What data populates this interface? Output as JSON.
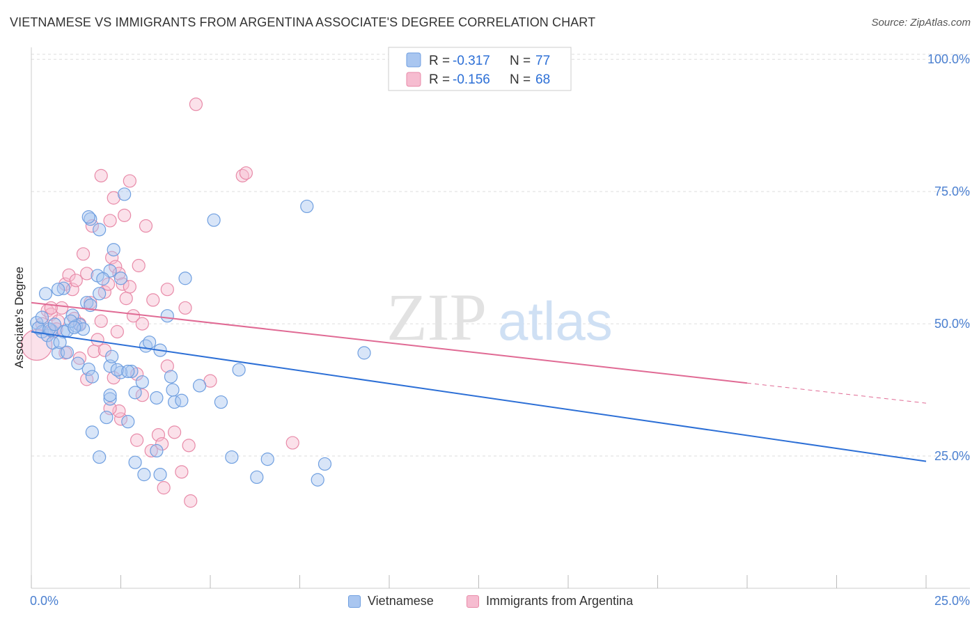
{
  "title": "VIETNAMESE VS IMMIGRANTS FROM ARGENTINA ASSOCIATE'S DEGREE CORRELATION CHART",
  "source": "Source: ZipAtlas.com",
  "watermark": {
    "zip": "ZIP",
    "atlas": "atlas"
  },
  "colors": {
    "blue_fill": "#a9c6f0",
    "blue_stroke": "#6f9fe0",
    "blue_line": "#2c6fd6",
    "pink_fill": "#f6bcd0",
    "pink_stroke": "#e88aa8",
    "pink_line": "#e06a94",
    "tick": "#4a7fd0",
    "grid": "#dddddd"
  },
  "legend": {
    "blue": {
      "r_label": "R = ",
      "r_value": "-0.317",
      "n_label": "N = ",
      "n_value": "77"
    },
    "pink": {
      "r_label": "R = ",
      "r_value": "-0.156",
      "n_label": "N = ",
      "n_value": "68"
    }
  },
  "bottom_legend": {
    "blue": "Vietnamese",
    "pink": "Immigrants from Argentina"
  },
  "chart_data": {
    "type": "scatter",
    "title": "VIETNAMESE VS IMMIGRANTS FROM ARGENTINA ASSOCIATE'S DEGREE CORRELATION CHART",
    "xlabel": "",
    "ylabel": "Associate's Degree",
    "xlim": [
      0,
      25
    ],
    "ylim": [
      0,
      102
    ],
    "x_tick_labels": [
      "0.0%",
      "25.0%"
    ],
    "y_ticks": [
      25,
      50,
      75,
      100
    ],
    "y_tick_labels": [
      "25.0%",
      "50.0%",
      "75.0%",
      "100.0%"
    ],
    "grid": "horizontal dashed",
    "legend_position": "top-center",
    "series": [
      {
        "name": "Vietnamese",
        "color": "#a9c6f0",
        "R": -0.317,
        "N": 77,
        "trend": {
          "x": [
            0,
            25
          ],
          "y": [
            48.5,
            24.0
          ],
          "dashed_from": null
        },
        "points": [
          [
            0.15,
            50.2
          ],
          [
            0.3,
            48.5
          ],
          [
            0.45,
            47.8
          ],
          [
            0.55,
            48.8
          ],
          [
            0.6,
            46.4
          ],
          [
            0.75,
            44.5
          ],
          [
            0.9,
            48.5
          ],
          [
            1.0,
            48.7
          ],
          [
            1.15,
            51.6
          ],
          [
            1.25,
            49.6
          ],
          [
            1.35,
            49.8
          ],
          [
            1.45,
            49.0
          ],
          [
            1.55,
            54.0
          ],
          [
            1.65,
            53.5
          ],
          [
            0.4,
            55.7
          ],
          [
            0.9,
            56.7
          ],
          [
            0.75,
            56.5
          ],
          [
            1.1,
            50.5
          ],
          [
            0.2,
            49.2
          ],
          [
            0.3,
            51.2
          ],
          [
            1.6,
            41.4
          ],
          [
            1.7,
            40.0
          ],
          [
            2.2,
            42.0
          ],
          [
            2.25,
            43.8
          ],
          [
            1.7,
            29.5
          ],
          [
            2.1,
            32.3
          ],
          [
            2.2,
            35.8
          ],
          [
            2.2,
            36.5
          ],
          [
            1.9,
            24.8
          ],
          [
            2.9,
            23.8
          ],
          [
            2.8,
            41.0
          ],
          [
            2.7,
            31.5
          ],
          [
            2.9,
            37.0
          ],
          [
            3.15,
            21.5
          ],
          [
            3.1,
            39.0
          ],
          [
            3.5,
            36.0
          ],
          [
            3.5,
            26.0
          ],
          [
            3.2,
            45.8
          ],
          [
            3.3,
            46.5
          ],
          [
            3.6,
            45.0
          ],
          [
            3.8,
            51.5
          ],
          [
            3.9,
            40.0
          ],
          [
            3.95,
            37.5
          ],
          [
            4.0,
            35.2
          ],
          [
            4.2,
            35.5
          ],
          [
            3.6,
            21.5
          ],
          [
            4.3,
            58.6
          ],
          [
            1.65,
            69.8
          ],
          [
            1.9,
            67.8
          ],
          [
            1.6,
            70.2
          ],
          [
            2.3,
            64.0
          ],
          [
            1.85,
            59.1
          ],
          [
            2.2,
            60.0
          ],
          [
            2.5,
            58.6
          ],
          [
            1.9,
            55.7
          ],
          [
            2.6,
            74.5
          ],
          [
            2.0,
            58.5
          ],
          [
            1.3,
            42.5
          ],
          [
            2.5,
            40.8
          ],
          [
            2.4,
            41.3
          ],
          [
            5.3,
            35.2
          ],
          [
            5.6,
            24.8
          ],
          [
            6.3,
            21.0
          ],
          [
            6.6,
            24.4
          ],
          [
            5.1,
            69.6
          ],
          [
            7.7,
            72.2
          ],
          [
            8.2,
            23.5
          ],
          [
            9.3,
            44.5
          ],
          [
            4.7,
            38.3
          ],
          [
            8.0,
            20.5
          ],
          [
            5.8,
            41.3
          ],
          [
            1.2,
            49.3
          ],
          [
            2.7,
            41.0
          ],
          [
            0.8,
            46.5
          ],
          [
            1.0,
            44.6
          ],
          [
            0.5,
            49.0
          ],
          [
            0.65,
            49.9
          ]
        ]
      },
      {
        "name": "Immigrants from Argentina",
        "color": "#f6bcd0",
        "R": -0.156,
        "N": 68,
        "trend": {
          "x": [
            0,
            25
          ],
          "y": [
            54.0,
            35.0
          ],
          "dashed_from": 20.0
        },
        "points": [
          [
            0.15,
            46.0
          ],
          [
            0.3,
            50.0
          ],
          [
            0.45,
            52.5
          ],
          [
            0.55,
            51.8
          ],
          [
            0.6,
            48.5
          ],
          [
            0.75,
            50.5
          ],
          [
            0.85,
            53.0
          ],
          [
            0.95,
            57.5
          ],
          [
            1.05,
            59.2
          ],
          [
            1.15,
            56.5
          ],
          [
            1.25,
            58.2
          ],
          [
            1.35,
            50.0
          ],
          [
            1.45,
            63.2
          ],
          [
            1.55,
            59.5
          ],
          [
            1.65,
            54.0
          ],
          [
            1.75,
            44.8
          ],
          [
            1.85,
            47.0
          ],
          [
            1.95,
            50.5
          ],
          [
            2.05,
            56.0
          ],
          [
            2.15,
            57.5
          ],
          [
            2.25,
            62.5
          ],
          [
            2.35,
            60.8
          ],
          [
            2.45,
            59.5
          ],
          [
            2.55,
            57.5
          ],
          [
            2.65,
            54.8
          ],
          [
            2.75,
            57.0
          ],
          [
            2.85,
            51.5
          ],
          [
            2.95,
            40.5
          ],
          [
            1.35,
            43.5
          ],
          [
            1.55,
            39.5
          ],
          [
            1.7,
            68.5
          ],
          [
            1.95,
            78.0
          ],
          [
            2.2,
            69.5
          ],
          [
            2.3,
            73.8
          ],
          [
            2.6,
            70.5
          ],
          [
            2.75,
            77.0
          ],
          [
            3.0,
            61.0
          ],
          [
            3.2,
            68.5
          ],
          [
            3.4,
            54.5
          ],
          [
            3.1,
            50.0
          ],
          [
            2.95,
            28.0
          ],
          [
            3.35,
            26.0
          ],
          [
            3.55,
            29.0
          ],
          [
            3.8,
            42.0
          ],
          [
            3.8,
            56.5
          ],
          [
            4.3,
            53.0
          ],
          [
            3.7,
            19.0
          ],
          [
            4.0,
            29.5
          ],
          [
            4.45,
            16.5
          ],
          [
            4.6,
            91.5
          ],
          [
            5.9,
            78.0
          ],
          [
            6.0,
            78.5
          ],
          [
            5.0,
            39.2
          ],
          [
            4.2,
            22.0
          ],
          [
            4.4,
            27.0
          ],
          [
            7.3,
            27.5
          ],
          [
            2.5,
            32.0
          ],
          [
            2.45,
            33.5
          ],
          [
            2.05,
            45.0
          ],
          [
            2.4,
            48.5
          ],
          [
            3.1,
            36.5
          ],
          [
            2.2,
            34.0
          ],
          [
            0.55,
            53.0
          ],
          [
            0.7,
            49.0
          ],
          [
            1.2,
            51.0
          ],
          [
            0.95,
            44.5
          ],
          [
            3.65,
            27.3
          ],
          [
            2.3,
            39.8
          ]
        ]
      }
    ]
  }
}
